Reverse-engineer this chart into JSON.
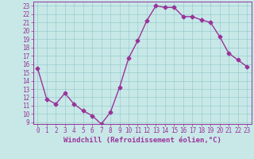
{
  "x": [
    0,
    1,
    2,
    3,
    4,
    5,
    6,
    7,
    8,
    9,
    10,
    11,
    12,
    13,
    14,
    15,
    16,
    17,
    18,
    19,
    20,
    21,
    22,
    23
  ],
  "y": [
    15.5,
    11.8,
    11.2,
    12.5,
    11.2,
    10.4,
    9.8,
    8.8,
    10.2,
    13.2,
    16.7,
    18.8,
    21.2,
    23.0,
    22.8,
    22.8,
    21.7,
    21.7,
    21.3,
    21.0,
    19.3,
    17.3,
    16.5,
    15.7
  ],
  "color": "#993399",
  "bg_color": "#c8e8e8",
  "grid_color": "#99cccc",
  "xlabel": "Windchill (Refroidissement éolien,°C)",
  "xlim": [
    -0.5,
    23.5
  ],
  "ylim": [
    8.8,
    23.5
  ],
  "yticks": [
    9,
    10,
    11,
    12,
    13,
    14,
    15,
    16,
    17,
    18,
    19,
    20,
    21,
    22,
    23
  ],
  "xticks": [
    0,
    1,
    2,
    3,
    4,
    5,
    6,
    7,
    8,
    9,
    10,
    11,
    12,
    13,
    14,
    15,
    16,
    17,
    18,
    19,
    20,
    21,
    22,
    23
  ],
  "marker": "D",
  "marker_size": 2.5,
  "line_width": 1.0,
  "xlabel_fontsize": 6.5,
  "tick_fontsize": 5.5
}
